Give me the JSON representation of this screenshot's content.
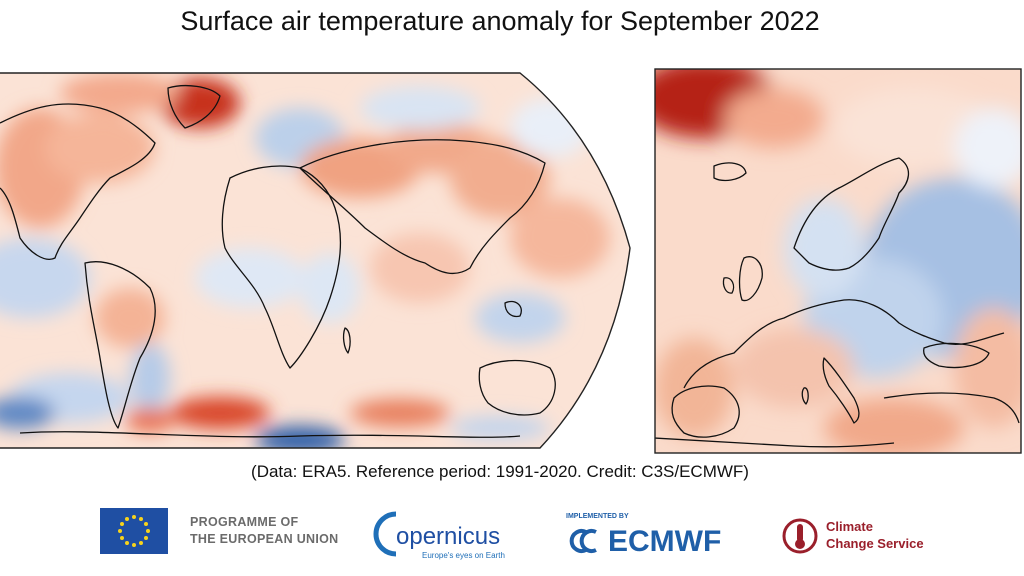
{
  "title": "Surface air temperature anomaly for September 2022",
  "credit": "(Data: ERA5.  Reference period: 1991-2020.  Credit: C3S/ECMWF)",
  "colors": {
    "warm_light": "#fbe0d2",
    "warm_mid": "#f3a585",
    "warm_strong": "#d9462a",
    "warm_deep": "#b32112",
    "cool_light": "#dbe6f4",
    "cool_mid": "#a9c1e2",
    "cool_deep": "#3d6fb6",
    "coast": "#111111",
    "eu_blue": "#1f4fa3",
    "eu_star": "#f7d31c",
    "ecmwf_blue": "#1f5fa8",
    "c3s_red": "#9a1f2b"
  },
  "logos": {
    "eu_line1": "PROGRAMME OF",
    "eu_line2": "THE EUROPEAN UNION",
    "copernicus_name": "opernicus",
    "copernicus_tagline": "Europe's eyes on Earth",
    "ecmwf_implemented": "IMPLEMENTED BY",
    "ecmwf_name": "ECMWF",
    "c3s_line1": "Climate",
    "c3s_line2": "Change Service"
  }
}
